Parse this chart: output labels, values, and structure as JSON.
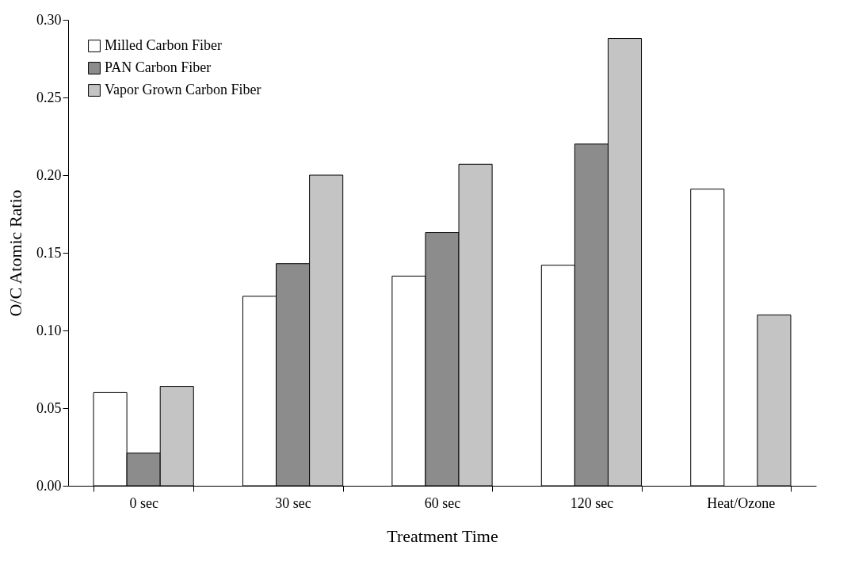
{
  "chart_data": {
    "type": "bar",
    "xlabel": "Treatment Time",
    "ylabel": "O/C Atomic Ratio",
    "categories": [
      "0 sec",
      "30 sec",
      "60 sec",
      "120 sec",
      "Heat/Ozone"
    ],
    "series": [
      {
        "name": "Milled Carbon Fiber",
        "color": "#ffffff",
        "values": [
          0.06,
          0.122,
          0.135,
          0.142,
          0.191
        ]
      },
      {
        "name": "PAN Carbon Fiber",
        "color": "#8c8c8c",
        "values": [
          0.021,
          0.143,
          0.163,
          0.22,
          null
        ]
      },
      {
        "name": "Vapor Grown Carbon Fiber",
        "color": "#c4c4c4",
        "values": [
          0.064,
          0.2,
          0.207,
          0.288,
          0.11
        ]
      }
    ],
    "ylim": [
      0,
      0.3
    ],
    "yticks": [
      {
        "value": 0,
        "label": "0.00"
      },
      0.05,
      {
        "value": 0.1,
        "label": "0.10"
      },
      0.15,
      {
        "value": 0.2,
        "label": "0.20"
      },
      0.25,
      {
        "value": 0.3,
        "label": "0.30"
      }
    ],
    "grid": false,
    "legend": "top left"
  }
}
